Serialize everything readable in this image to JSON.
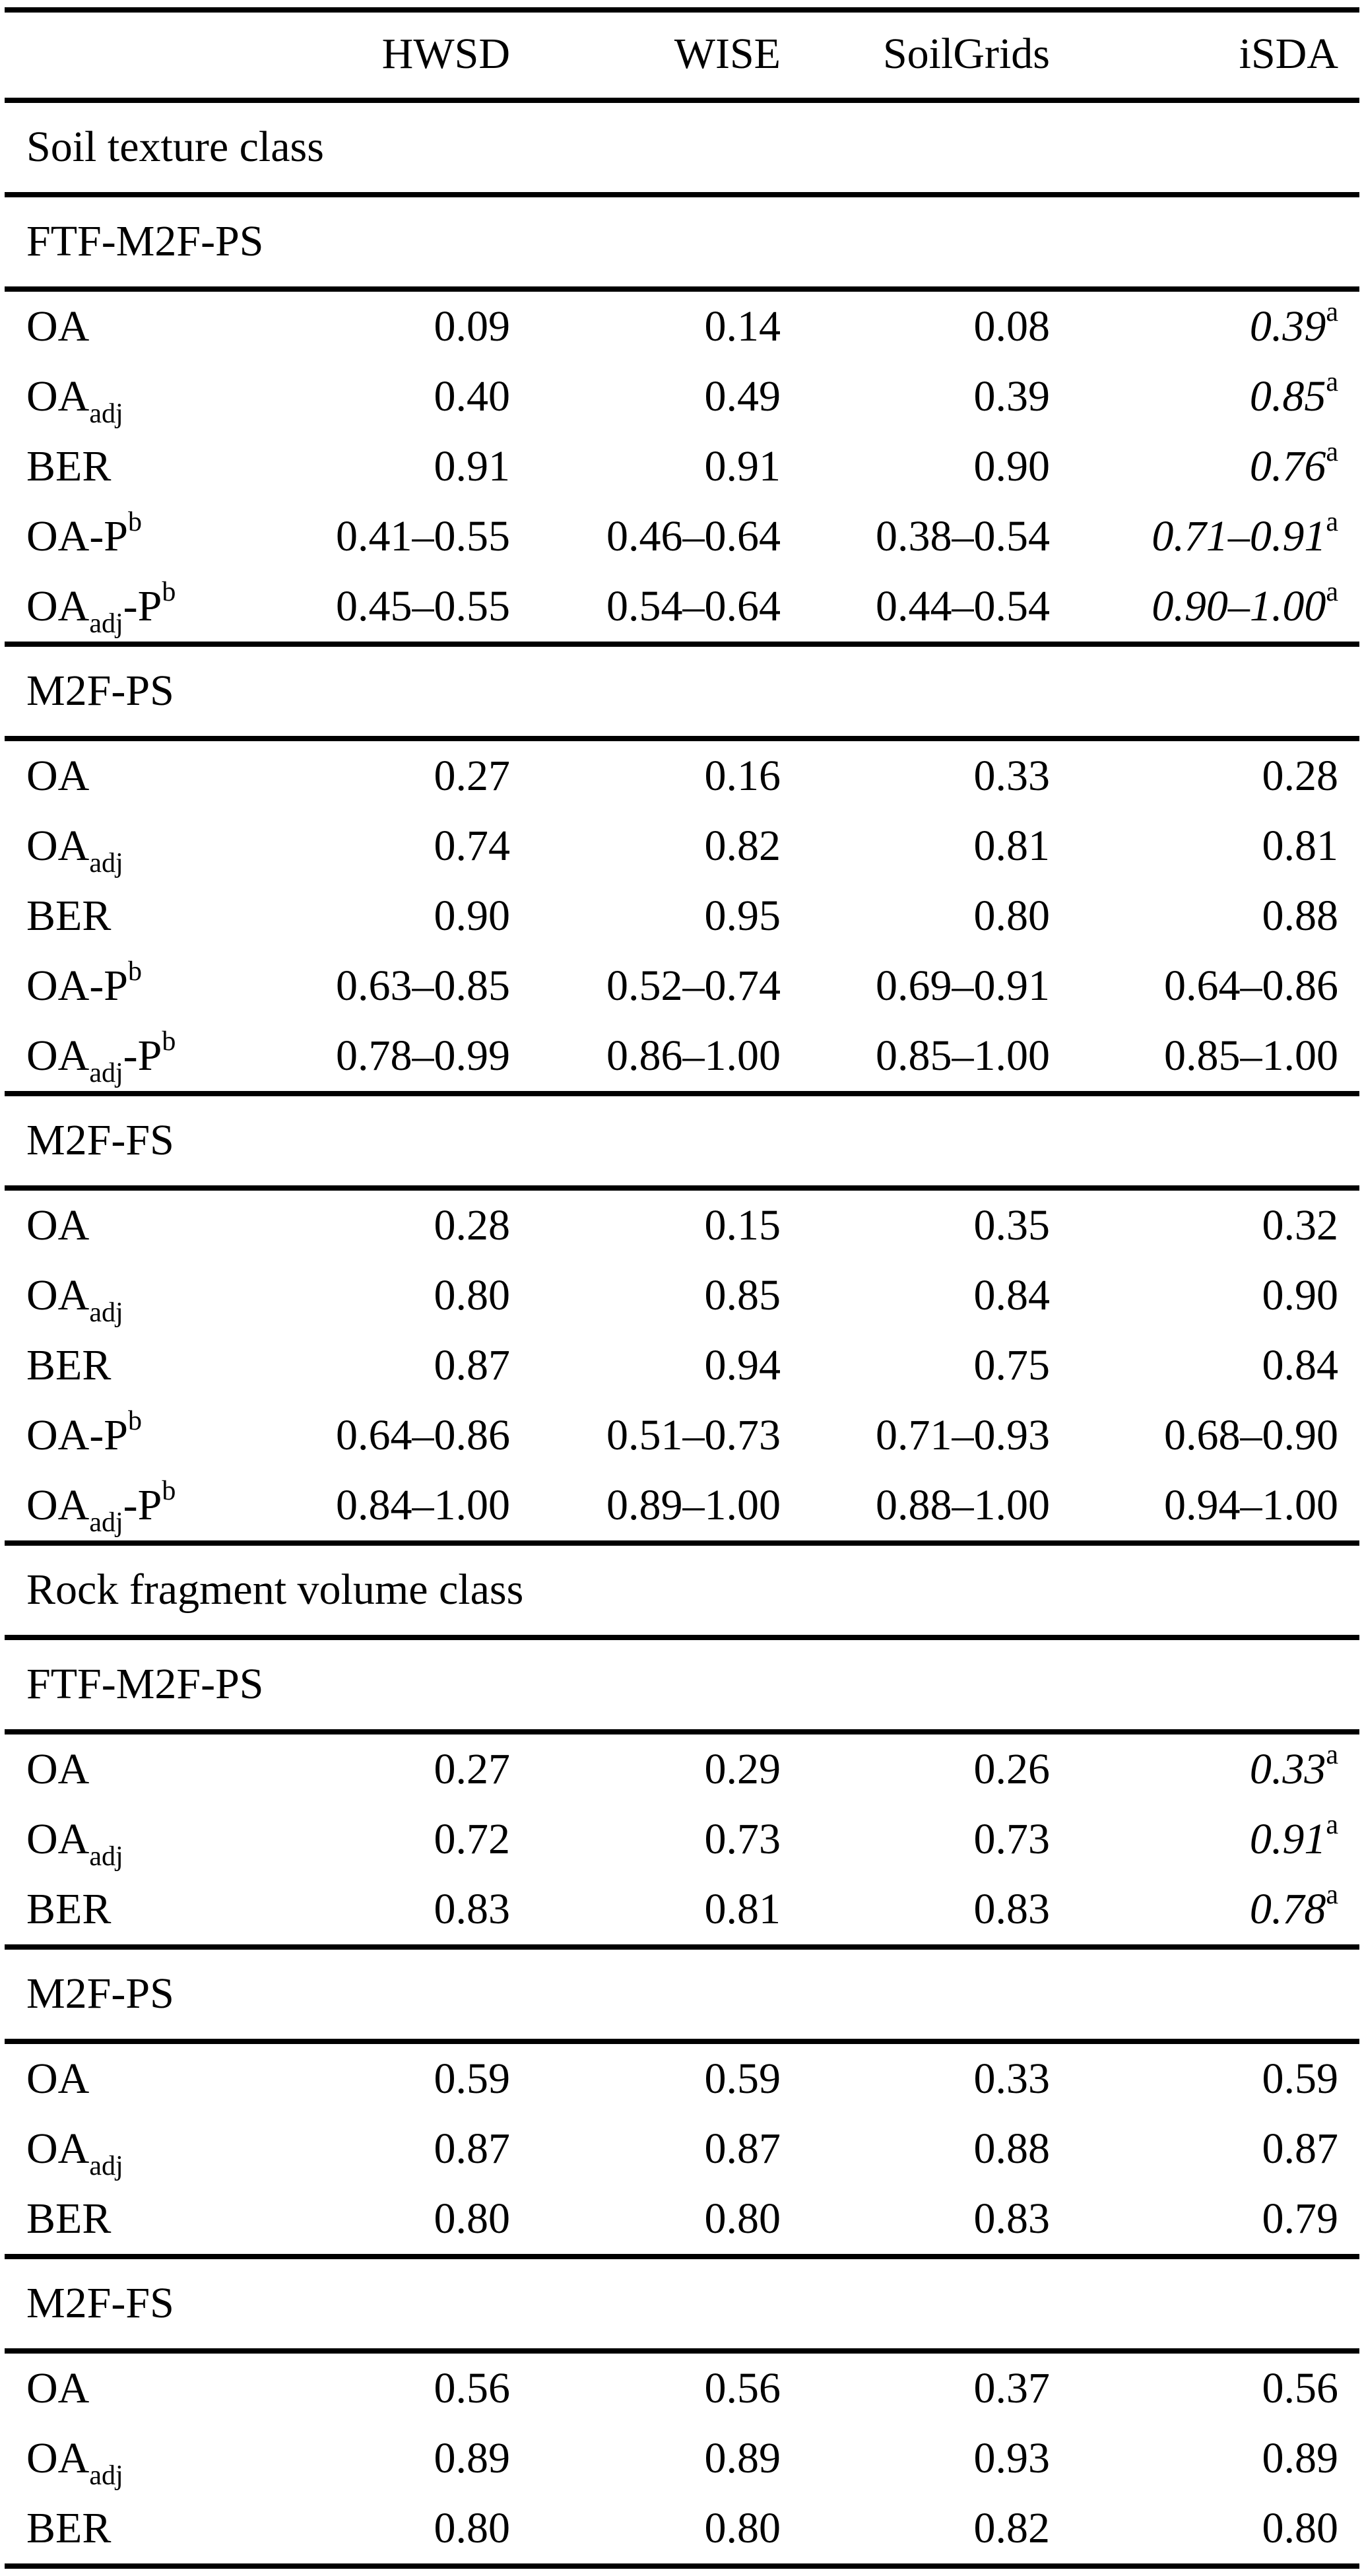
{
  "table": {
    "columns": [
      "",
      "HWSD",
      "WISE",
      "SoilGrids",
      "iSDA"
    ],
    "sections": [
      {
        "title": "Soil texture class",
        "groups": [
          {
            "name": "FTF-M2F-PS",
            "rows": [
              {
                "label": {
                  "pre": "OA",
                  "sub": "",
                  "mid": "",
                  "sup": ""
                },
                "v": [
                  "0.09",
                  "0.14",
                  "0.08",
                  "0.39"
                ],
                "note": "a"
              },
              {
                "label": {
                  "pre": "OA",
                  "sub": "adj",
                  "mid": "",
                  "sup": ""
                },
                "v": [
                  "0.40",
                  "0.49",
                  "0.39",
                  "0.85"
                ],
                "note": "a"
              },
              {
                "label": {
                  "pre": "BER",
                  "sub": "",
                  "mid": "",
                  "sup": ""
                },
                "v": [
                  "0.91",
                  "0.91",
                  "0.90",
                  "0.76"
                ],
                "note": "a"
              },
              {
                "label": {
                  "pre": "OA-P",
                  "sub": "",
                  "mid": "",
                  "sup": "b"
                },
                "v": [
                  "0.41–0.55",
                  "0.46–0.64",
                  "0.38–0.54",
                  "0.71–0.91"
                ],
                "note": "a"
              },
              {
                "label": {
                  "pre": "OA",
                  "sub": "adj",
                  "mid": "-P",
                  "sup": "b"
                },
                "v": [
                  "0.45–0.55",
                  "0.54–0.64",
                  "0.44–0.54",
                  "0.90–1.00"
                ],
                "note": "a"
              }
            ]
          },
          {
            "name": "M2F-PS",
            "rows": [
              {
                "label": {
                  "pre": "OA",
                  "sub": "",
                  "mid": "",
                  "sup": ""
                },
                "v": [
                  "0.27",
                  "0.16",
                  "0.33",
                  "0.28"
                ],
                "note": ""
              },
              {
                "label": {
                  "pre": "OA",
                  "sub": "adj",
                  "mid": "",
                  "sup": ""
                },
                "v": [
                  "0.74",
                  "0.82",
                  "0.81",
                  "0.81"
                ],
                "note": ""
              },
              {
                "label": {
                  "pre": "BER",
                  "sub": "",
                  "mid": "",
                  "sup": ""
                },
                "v": [
                  "0.90",
                  "0.95",
                  "0.80",
                  "0.88"
                ],
                "note": ""
              },
              {
                "label": {
                  "pre": "OA-P",
                  "sub": "",
                  "mid": "",
                  "sup": "b"
                },
                "v": [
                  "0.63–0.85",
                  "0.52–0.74",
                  "0.69–0.91",
                  "0.64–0.86"
                ],
                "note": ""
              },
              {
                "label": {
                  "pre": "OA",
                  "sub": "adj",
                  "mid": "-P",
                  "sup": "b"
                },
                "v": [
                  "0.78–0.99",
                  "0.86–1.00",
                  "0.85–1.00",
                  "0.85–1.00"
                ],
                "note": ""
              }
            ]
          },
          {
            "name": "M2F-FS",
            "rows": [
              {
                "label": {
                  "pre": "OA",
                  "sub": "",
                  "mid": "",
                  "sup": ""
                },
                "v": [
                  "0.28",
                  "0.15",
                  "0.35",
                  "0.32"
                ],
                "note": ""
              },
              {
                "label": {
                  "pre": "OA",
                  "sub": "adj",
                  "mid": "",
                  "sup": ""
                },
                "v": [
                  "0.80",
                  "0.85",
                  "0.84",
                  "0.90"
                ],
                "note": ""
              },
              {
                "label": {
                  "pre": "BER",
                  "sub": "",
                  "mid": "",
                  "sup": ""
                },
                "v": [
                  "0.87",
                  "0.94",
                  "0.75",
                  "0.84"
                ],
                "note": ""
              },
              {
                "label": {
                  "pre": "OA-P",
                  "sub": "",
                  "mid": "",
                  "sup": "b"
                },
                "v": [
                  "0.64–0.86",
                  "0.51–0.73",
                  "0.71–0.93",
                  "0.68–0.90"
                ],
                "note": ""
              },
              {
                "label": {
                  "pre": "OA",
                  "sub": "adj",
                  "mid": "-P",
                  "sup": "b"
                },
                "v": [
                  "0.84–1.00",
                  "0.89–1.00",
                  "0.88–1.00",
                  "0.94–1.00"
                ],
                "note": ""
              }
            ]
          }
        ]
      },
      {
        "title": "Rock fragment volume class",
        "groups": [
          {
            "name": "FTF-M2F-PS",
            "rows": [
              {
                "label": {
                  "pre": "OA",
                  "sub": "",
                  "mid": "",
                  "sup": ""
                },
                "v": [
                  "0.27",
                  "0.29",
                  "0.26",
                  "0.33"
                ],
                "note": "a"
              },
              {
                "label": {
                  "pre": "OA",
                  "sub": "adj",
                  "mid": "",
                  "sup": ""
                },
                "v": [
                  "0.72",
                  "0.73",
                  "0.73",
                  "0.91"
                ],
                "note": "a"
              },
              {
                "label": {
                  "pre": "BER",
                  "sub": "",
                  "mid": "",
                  "sup": ""
                },
                "v": [
                  "0.83",
                  "0.81",
                  "0.83",
                  "0.78"
                ],
                "note": "a"
              }
            ]
          },
          {
            "name": "M2F-PS",
            "rows": [
              {
                "label": {
                  "pre": "OA",
                  "sub": "",
                  "mid": "",
                  "sup": ""
                },
                "v": [
                  "0.59",
                  "0.59",
                  "0.33",
                  "0.59"
                ],
                "note": ""
              },
              {
                "label": {
                  "pre": "OA",
                  "sub": "adj",
                  "mid": "",
                  "sup": ""
                },
                "v": [
                  "0.87",
                  "0.87",
                  "0.88",
                  "0.87"
                ],
                "note": ""
              },
              {
                "label": {
                  "pre": "BER",
                  "sub": "",
                  "mid": "",
                  "sup": ""
                },
                "v": [
                  "0.80",
                  "0.80",
                  "0.83",
                  "0.79"
                ],
                "note": ""
              }
            ]
          },
          {
            "name": "M2F-FS",
            "rows": [
              {
                "label": {
                  "pre": "OA",
                  "sub": "",
                  "mid": "",
                  "sup": ""
                },
                "v": [
                  "0.56",
                  "0.56",
                  "0.37",
                  "0.56"
                ],
                "note": ""
              },
              {
                "label": {
                  "pre": "OA",
                  "sub": "adj",
                  "mid": "",
                  "sup": ""
                },
                "v": [
                  "0.89",
                  "0.89",
                  "0.93",
                  "0.89"
                ],
                "note": ""
              },
              {
                "label": {
                  "pre": "BER",
                  "sub": "",
                  "mid": "",
                  "sup": ""
                },
                "v": [
                  "0.80",
                  "0.80",
                  "0.82",
                  "0.80"
                ],
                "note": ""
              }
            ]
          }
        ]
      }
    ]
  }
}
